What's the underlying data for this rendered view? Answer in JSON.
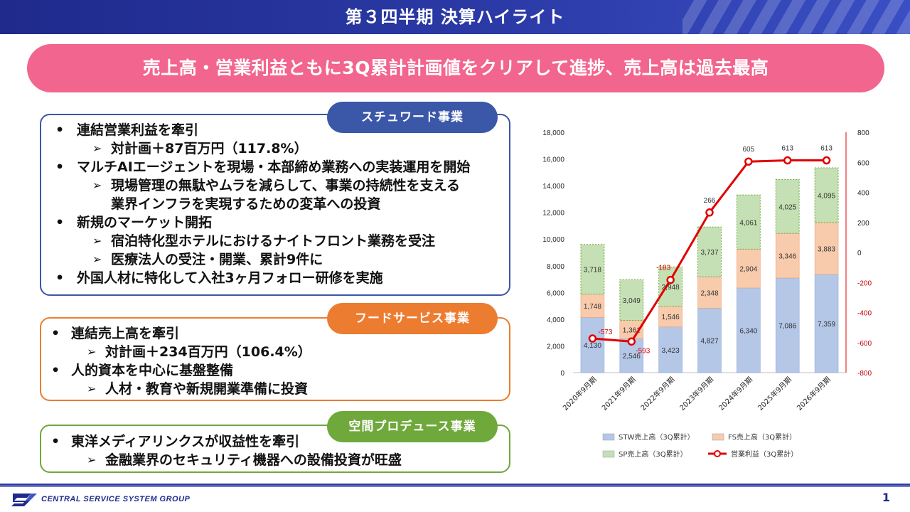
{
  "title": "第３四半期 決算ハイライト",
  "headline": "売上高・営業利益ともに3Q累計計画値をクリアして進捗、売上高は過去最高",
  "sections": {
    "stw": {
      "tag": "スチュワード事業",
      "lines": [
        "連結営業利益を牽引",
        "対計画＋87百万円（117.8%）",
        "マルチAIエージェントを現場・本部締め業務への実装運用を開始",
        "現場管理の無駄やムラを減らして、事業の持続性を支える",
        "業界インフラを実現するための変革への投資",
        "新規のマーケット開拓",
        "宿泊特化型ホテルにおけるナイトフロント業務を受注",
        "医療法人の受注・開業、累計9件に",
        "外国人材に特化して入社3ヶ月フォロー研修を実施"
      ]
    },
    "fs": {
      "tag": "フードサービス事業",
      "lines": [
        "連結売上高を牽引",
        "対計画＋234百万円（106.4%）",
        "人的資本を中心に基盤整備",
        "人材・教育や新規開業準備に投資"
      ]
    },
    "sp": {
      "tag": "空間プロデュース事業",
      "lines": [
        "東洋メディアリンクスが収益性を牽引",
        "金融業界のセキュリティ機器への設備投資が旺盛"
      ]
    }
  },
  "chart_data": {
    "type": "bar",
    "stacked": true,
    "categories": [
      "2020年9月期",
      "2021年9月期",
      "2022年9月期",
      "2023年9月期",
      "2024年9月期",
      "2025年9月期",
      "2026年9月期"
    ],
    "series": [
      {
        "name": "STW売上高（3Q累計）",
        "values": [
          4130,
          2546,
          3423,
          4827,
          6340,
          7086,
          7359
        ],
        "color": "#b4c7e7"
      },
      {
        "name": "FS売上高（3Q累計）",
        "values": [
          1748,
          1361,
          1546,
          2348,
          2904,
          3346,
          3883
        ],
        "color": "#f8cbad"
      },
      {
        "name": "SP売上高（3Q累計）",
        "values": [
          3718,
          3049,
          2948,
          3737,
          4061,
          4025,
          4095
        ],
        "color": "#c5e0b4"
      }
    ],
    "line_series": {
      "name": "営業利益（3Q累計）",
      "values": [
        -573,
        -593,
        -183,
        266,
        605,
        613,
        613
      ],
      "color": "#e00000"
    },
    "y_left": {
      "min": 0,
      "max": 18000,
      "step": 2000,
      "ticks": [
        "0",
        "2,000",
        "4,000",
        "6,000",
        "8,000",
        "10,000",
        "12,000",
        "14,000",
        "16,000",
        "18,000"
      ]
    },
    "y_right": {
      "min": -800,
      "max": 800,
      "step": 200,
      "ticks": [
        "-800",
        "-600",
        "-400",
        "-200",
        "0",
        "200",
        "400",
        "600",
        "800"
      ]
    },
    "legend_position": "bottom"
  },
  "footer": {
    "company": "CENTRAL SERVICE SYSTEM GROUP",
    "page": "1"
  }
}
